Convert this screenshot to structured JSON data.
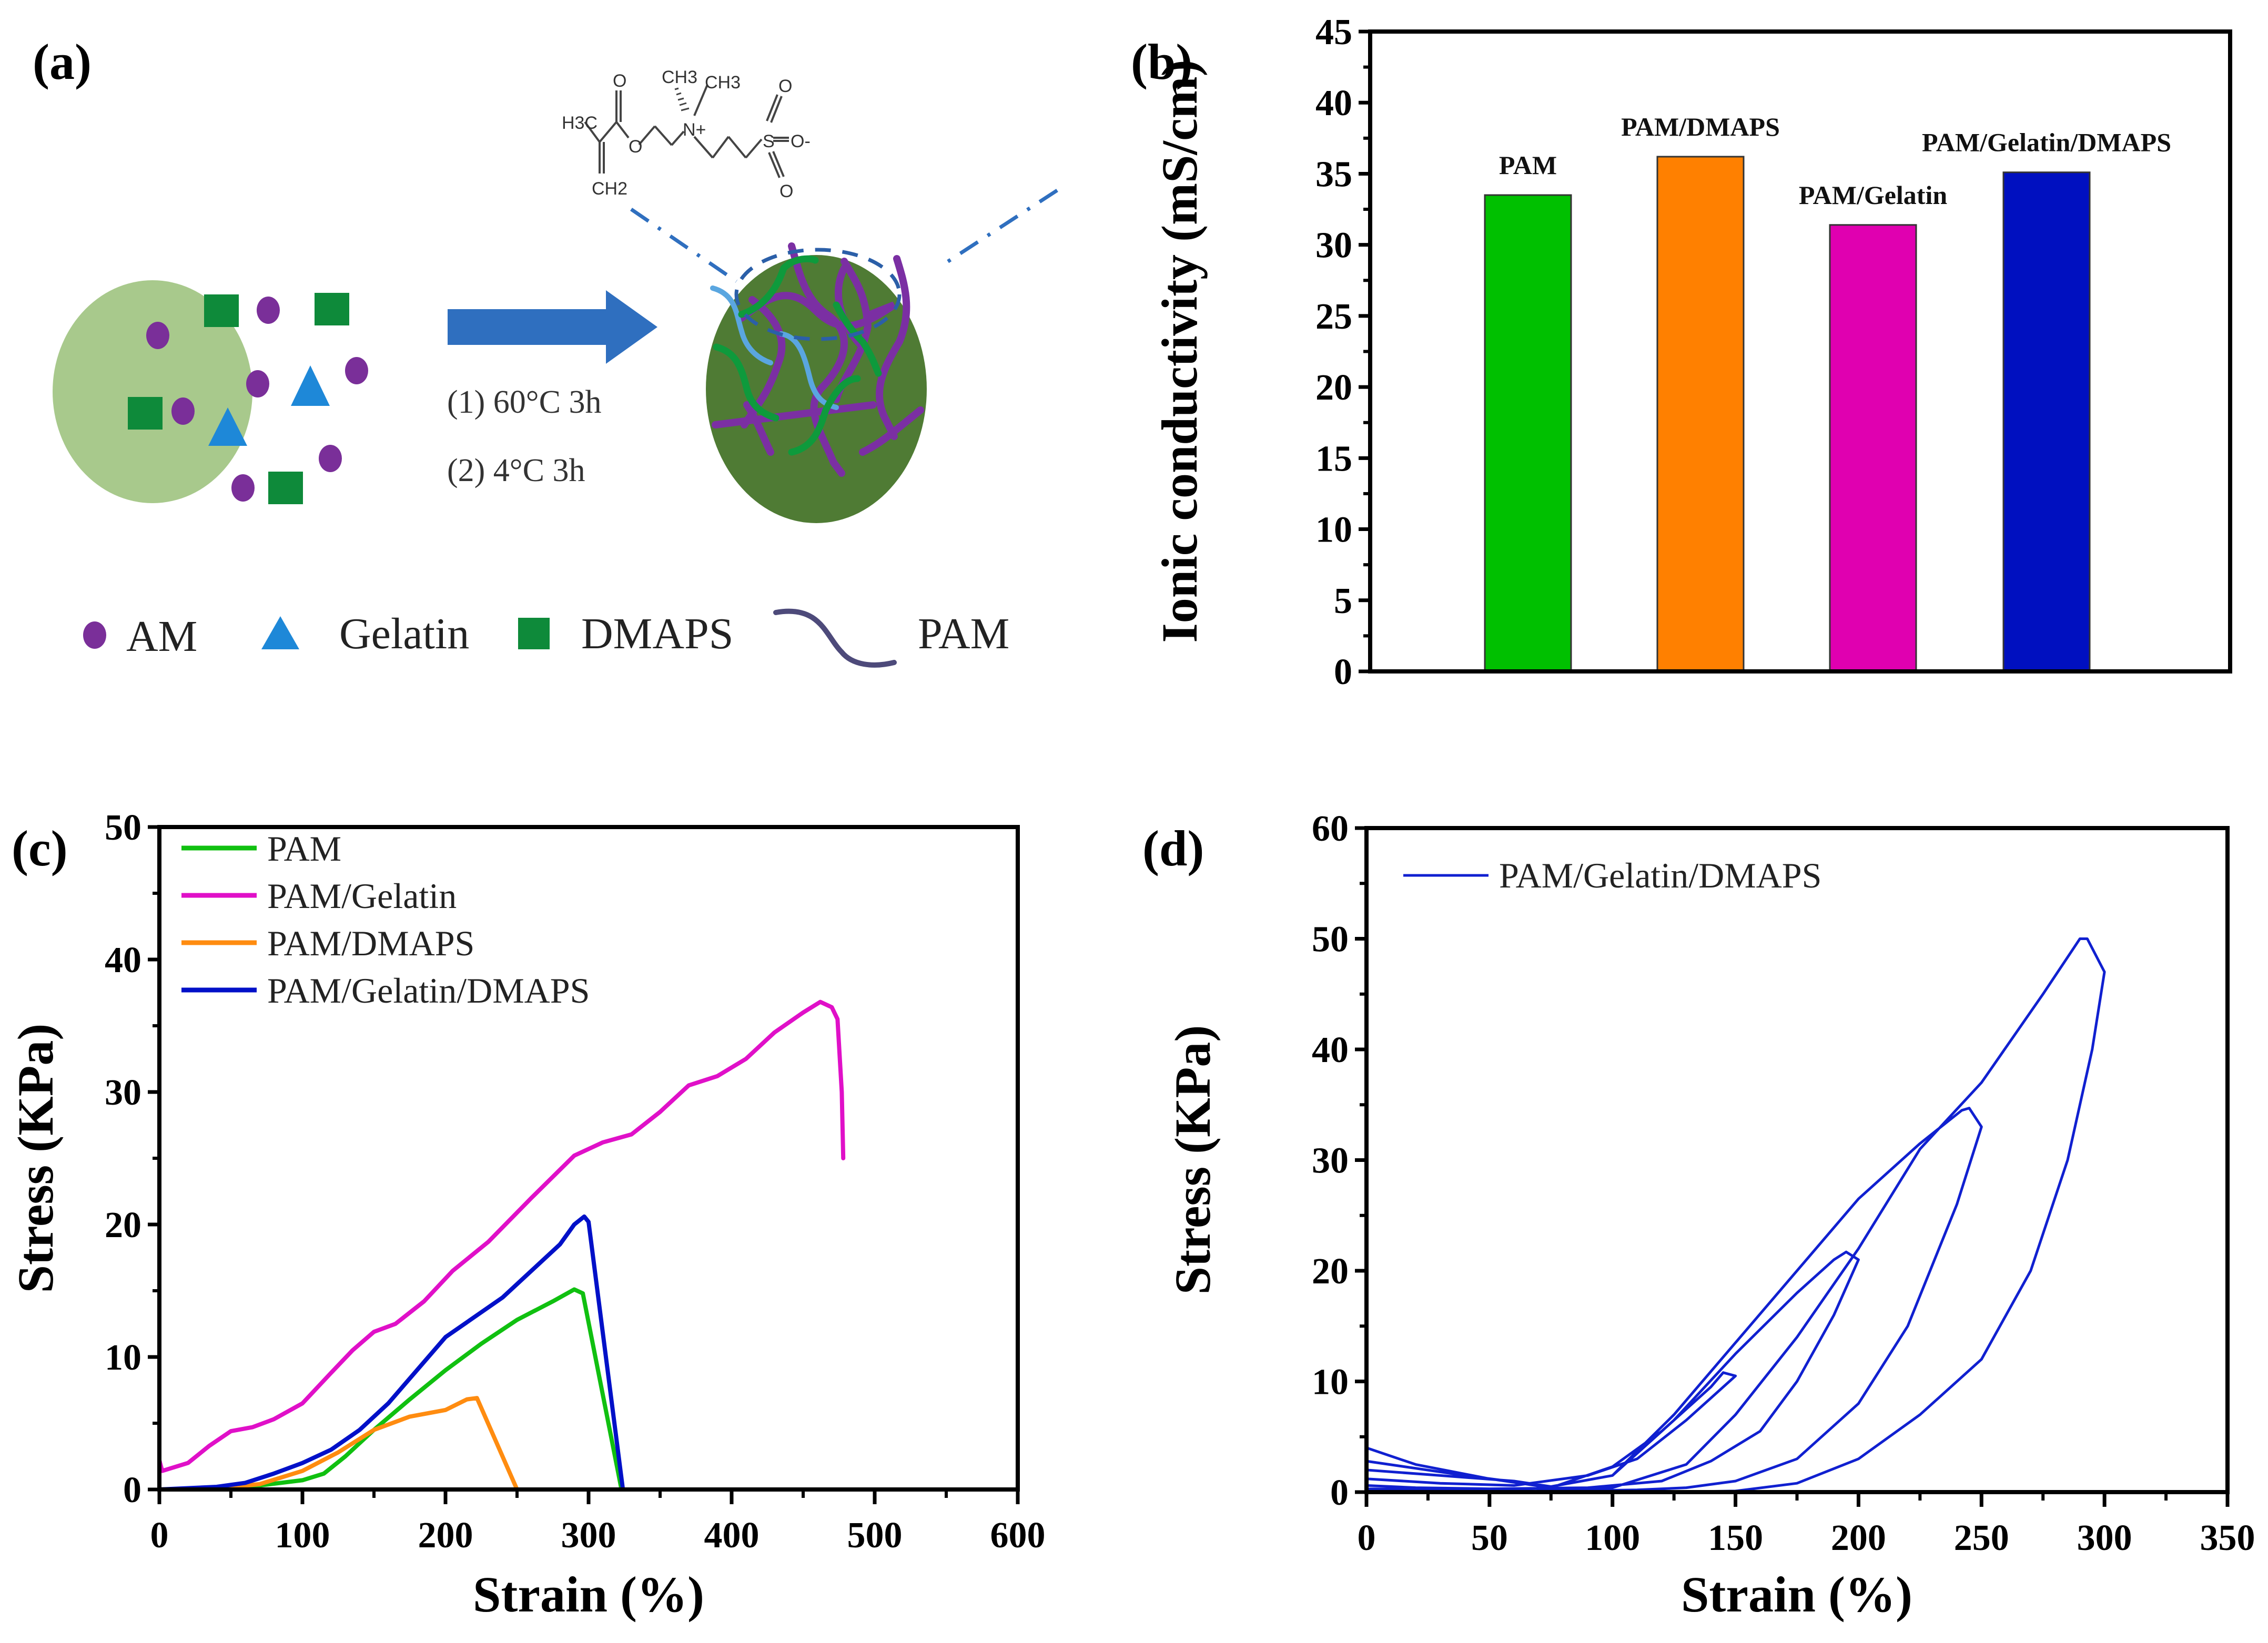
{
  "panels": {
    "a": {
      "label": "(a)",
      "conditions": [
        "(1) 60°C 3h",
        "(2) 4°C 3h"
      ],
      "legend": [
        {
          "symbol": "circle",
          "label": "AM",
          "color": "#7a2f99"
        },
        {
          "symbol": "triangle",
          "label": "Gelatin",
          "color": "#1e88d8"
        },
        {
          "symbol": "square",
          "label": "DMAPS",
          "color": "#0e8a3a"
        },
        {
          "symbol": "wave",
          "label": "PAM",
          "color": "#4d4a7a"
        }
      ],
      "molecule_labels": {
        "h3c": "H3C",
        "ch2": "CH2",
        "o_carbonyl": "O",
        "o_ester": "O",
        "ch3_a": "CH3",
        "ch3_b": "CH3",
        "n_plus": "N+",
        "s": "S",
        "o_top": "O",
        "o_minus": "O-",
        "o_bottom": "O"
      },
      "colors": {
        "precursor_circle": "#a8c98c",
        "gel_circle": "#4f7b34",
        "arrow": "#2f6fbf",
        "am": "#7a2f99",
        "gelatin": "#1e88d8",
        "dmaps": "#0e8a3a",
        "pam_chain": "#7b2fa3",
        "gelatin_chain": "#5aa6e0",
        "dmaps_chain": "#0e9a3c"
      }
    },
    "b": {
      "label": "(b)"
    },
    "c": {
      "label": "(c)"
    },
    "d": {
      "label": "(d)"
    }
  },
  "chart_data": [
    {
      "panel": "b",
      "type": "bar",
      "title": "",
      "xlabel": "",
      "ylabel": "Ionic conductivity (mS/cm)",
      "ylim": [
        0,
        45
      ],
      "yticks": [
        0,
        5,
        10,
        15,
        20,
        25,
        30,
        35,
        40,
        45
      ],
      "categories": [
        "PAM",
        "PAM/DMAPS",
        "PAM/Gelatin",
        "PAM/Gelatin/DMAPS"
      ],
      "values": [
        33.5,
        36.2,
        31.4,
        35.1
      ],
      "colors": [
        "#00c000",
        "#ff8000",
        "#e000b0",
        "#0010c0"
      ],
      "grid": false
    },
    {
      "panel": "c",
      "type": "line",
      "title": "",
      "xlabel": "Strain (%)",
      "ylabel": "Stress (KPa)",
      "xlim": [
        0,
        600
      ],
      "ylim": [
        0,
        50
      ],
      "xticks": [
        0,
        100,
        200,
        300,
        400,
        500,
        600
      ],
      "yticks": [
        0,
        10,
        20,
        30,
        40,
        50
      ],
      "legend_position": "top-left",
      "grid": false,
      "series": [
        {
          "name": "PAM",
          "color": "#10c010",
          "x": [
            0,
            40,
            70,
            100,
            115,
            130,
            150,
            175,
            200,
            225,
            250,
            275,
            290,
            296,
            323,
            480
          ],
          "y": [
            0,
            0.1,
            0.3,
            0.7,
            1.2,
            2.5,
            4.5,
            6.8,
            9,
            11,
            12.8,
            14.2,
            15.1,
            14.8,
            0,
            0
          ]
        },
        {
          "name": "PAM/Gelatin",
          "color": "#e010c8",
          "x": [
            0,
            2,
            20,
            35,
            50,
            65,
            80,
            100,
            120,
            135,
            150,
            165,
            185,
            205,
            230,
            260,
            290,
            310,
            330,
            350,
            370,
            390,
            410,
            430,
            450,
            462,
            470,
            474,
            477,
            478
          ],
          "y": [
            2.2,
            1.4,
            2,
            3.3,
            4.4,
            4.7,
            5.3,
            6.5,
            8.8,
            10.5,
            11.9,
            12.5,
            14.2,
            16.5,
            18.7,
            22,
            25.2,
            26.2,
            26.8,
            28.5,
            30.5,
            31.2,
            32.5,
            34.5,
            36,
            36.8,
            36.4,
            35.5,
            30,
            25
          ]
        },
        {
          "name": "PAM/DMAPS",
          "color": "#ff8c10",
          "x": [
            0,
            40,
            70,
            100,
            125,
            150,
            175,
            200,
            215,
            222,
            250,
            323
          ],
          "y": [
            0,
            0.1,
            0.4,
            1.4,
            2.8,
            4.5,
            5.5,
            6.0,
            6.8,
            6.9,
            0,
            0
          ]
        },
        {
          "name": "PAM/Gelatin/DMAPS",
          "color": "#0010c8",
          "x": [
            0,
            40,
            60,
            80,
            100,
            120,
            140,
            160,
            180,
            200,
            220,
            240,
            260,
            280,
            290,
            297,
            300,
            324,
            480
          ],
          "y": [
            0,
            0.2,
            0.5,
            1.2,
            2.0,
            3.0,
            4.5,
            6.5,
            9,
            11.5,
            13,
            14.5,
            16.5,
            18.5,
            20,
            20.6,
            20.2,
            0,
            0
          ]
        }
      ]
    },
    {
      "panel": "d",
      "type": "line",
      "title": "",
      "xlabel": "Strain (%)",
      "ylabel": "Stress (KPa)",
      "xlim": [
        0,
        350
      ],
      "ylim": [
        0,
        60
      ],
      "xticks": [
        0,
        50,
        100,
        150,
        200,
        250,
        300,
        350
      ],
      "yticks": [
        0,
        10,
        20,
        30,
        40,
        50,
        60
      ],
      "legend_position": "top-left",
      "grid": false,
      "series": [
        {
          "name": "PAM/Gelatin/DMAPS",
          "color": "#1020d0",
          "x": [
            0,
            20,
            50,
            75,
            100,
            120,
            140,
            145,
            150,
            140,
            130,
            110,
            90,
            60,
            30,
            0,
            0,
            30,
            60,
            75,
            100,
            125,
            150,
            175,
            190,
            195,
            200,
            190,
            175,
            160,
            140,
            120,
            90,
            50,
            20,
            0,
            0,
            40,
            75,
            100,
            125,
            150,
            175,
            200,
            225,
            242,
            245,
            250,
            240,
            220,
            200,
            175,
            150,
            130,
            110,
            80,
            40,
            0,
            0,
            50,
            100,
            130,
            150,
            175,
            200,
            225,
            250,
            275,
            290,
            293,
            300,
            295,
            285,
            270,
            250,
            225,
            200,
            175,
            150,
            120,
            80,
            40,
            0
          ],
          "y": [
            4,
            2.5,
            1.2,
            0.4,
            2.3,
            5.5,
            9.5,
            10.8,
            10.5,
            8.5,
            6.5,
            3.0,
            1.5,
            0.6,
            0.8,
            1.2,
            2,
            1.5,
            1.0,
            0.5,
            1.5,
            6.5,
            12.5,
            18,
            21,
            21.7,
            21,
            16,
            10,
            5.5,
            2.8,
            1.0,
            0.4,
            0.3,
            0.4,
            0.6,
            2.8,
            1.5,
            0.5,
            1.5,
            7,
            13.5,
            20,
            26.5,
            31.5,
            34.5,
            34.7,
            33,
            26,
            15,
            8,
            3,
            1,
            0.4,
            0.2,
            0.1,
            0.1,
            0.2,
            0.3,
            0.2,
            0.4,
            2.5,
            7,
            14,
            22,
            31,
            37,
            45,
            50,
            50,
            47,
            40,
            30,
            20,
            12,
            7,
            3,
            0.8,
            0.1,
            0,
            0,
            0.1,
            0.3
          ]
        }
      ]
    }
  ]
}
